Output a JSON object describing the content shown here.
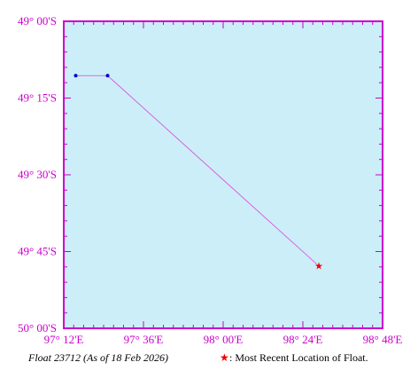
{
  "map": {
    "lat_labels": [
      "49° 00'S",
      "49° 15'S",
      "49° 30'S",
      "49° 45'S",
      "50° 00'S"
    ],
    "lon_labels": [
      "97° 12'E",
      "97° 36'E",
      "98° 00'E",
      "98° 24'E",
      "98° 48'E"
    ],
    "lat_range_deg": [
      -50.0,
      -49.0
    ],
    "lon_range_deg": [
      97.2,
      98.8
    ],
    "colors": {
      "ocean": "#cceef8",
      "frame": "#cc00cc",
      "track": "#dd44dd",
      "past_position": "#0000cc",
      "recent_position": "#ee0000",
      "label": "#cc00cc"
    }
  },
  "track": {
    "positions": [
      {
        "lon": 97.26,
        "lat": -49.177
      },
      {
        "lon": 97.42,
        "lat": -49.177
      },
      {
        "lon": 98.48,
        "lat": -49.797,
        "recent": true
      }
    ]
  },
  "caption": {
    "float_info": "Float 23712 (As of 18 Feb 2026)",
    "legend_symbol": "★",
    "legend_text": ": Most Recent Location of Float."
  }
}
